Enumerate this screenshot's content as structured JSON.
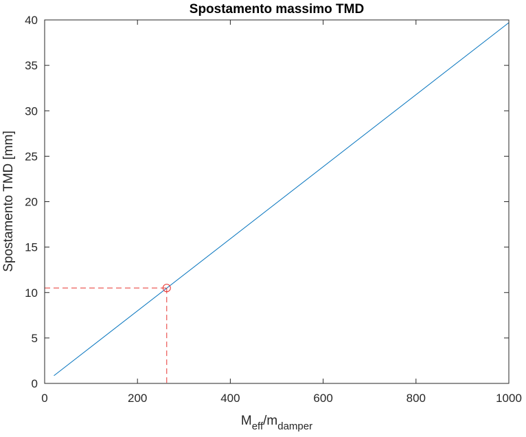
{
  "chart_data": {
    "type": "line",
    "title": "Spostamento massimo TMD",
    "xlabel": {
      "base": "M",
      "sub1": "eff",
      "mid": "/m",
      "sub2": "damper"
    },
    "ylabel": "Spostamento TMD [mm]",
    "xlim": [
      0,
      1000
    ],
    "ylim": [
      0,
      40
    ],
    "xticks": [
      "0",
      "200",
      "400",
      "600",
      "800",
      "1000"
    ],
    "yticks": [
      "0",
      "5",
      "10",
      "15",
      "20",
      "25",
      "30",
      "35",
      "40"
    ],
    "grid": false,
    "series": [
      {
        "color": "#0072BD",
        "x": [
          20,
          1000
        ],
        "y": [
          0.85,
          39.7
        ]
      }
    ],
    "marker": {
      "x": 263,
      "y": 10.5,
      "color": "#E8322F",
      "style": "open-circle"
    },
    "guides": {
      "color": "#E8322F",
      "style": "dashed"
    }
  }
}
